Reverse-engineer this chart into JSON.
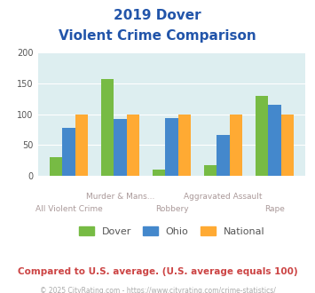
{
  "title_line1": "2019 Dover",
  "title_line2": "Violent Crime Comparison",
  "categories": [
    "All Violent Crime",
    "Murder & Mans...",
    "Robbery",
    "Aggravated Assault",
    "Rape"
  ],
  "cat_top": [
    "",
    "Murder & Mans...",
    "",
    "Aggravated Assault",
    ""
  ],
  "cat_bottom": [
    "All Violent Crime",
    "",
    "Robbery",
    "",
    "Rape"
  ],
  "dover_values": [
    30,
    157,
    10,
    17,
    130
  ],
  "ohio_values": [
    78,
    93,
    94,
    66,
    116
  ],
  "national_values": [
    100,
    100,
    100,
    100,
    100
  ],
  "dover_color": "#77bb44",
  "ohio_color": "#4488cc",
  "national_color": "#ffaa33",
  "bg_color": "#ddeef0",
  "title_color": "#2255aa",
  "xlabel_color": "#aa9999",
  "legend_label_color": "#555555",
  "footnote_color": "#cc4444",
  "copyright_color": "#aaaaaa",
  "ylim": [
    0,
    200
  ],
  "yticks": [
    0,
    50,
    100,
    150,
    200
  ],
  "footnote": "Compared to U.S. average. (U.S. average equals 100)",
  "copyright": "© 2025 CityRating.com - https://www.cityrating.com/crime-statistics/",
  "legend_labels": [
    "Dover",
    "Ohio",
    "National"
  ],
  "bar_width": 0.25
}
